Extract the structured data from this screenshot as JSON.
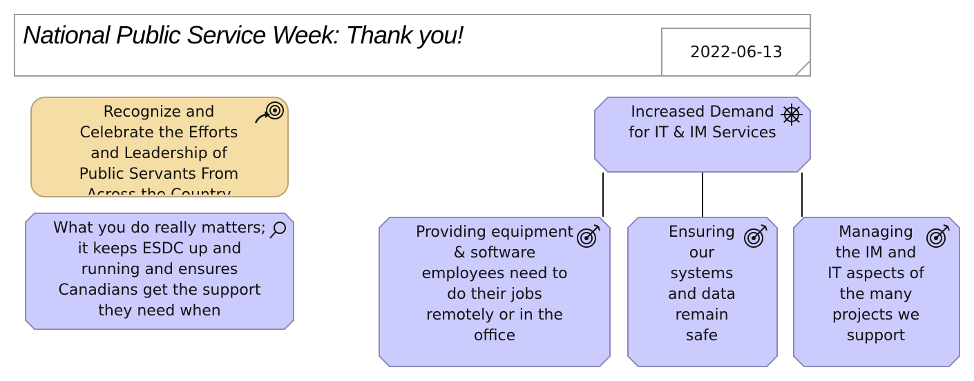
{
  "header": {
    "title": "National Public Service Week: Thank you!",
    "date": "2022-06-13"
  },
  "nodes": {
    "goal": {
      "label": "Recognize and Celebrate the Efforts and Leadership of Public Servants From Across the Country",
      "icon": "outcome-icon",
      "fill": "#f5dda6",
      "stroke": "#b7a478"
    },
    "assessment": {
      "label": "What you do really matters; it keeps ESDC up and running and ensures Canadians get the support they need when",
      "icon": "magnifier-icon",
      "fill": "#cccbfe",
      "stroke": "#8b8ab9"
    },
    "driver": {
      "label": "Increased Demand for IT & IM Services",
      "icon": "ship-wheel-icon",
      "fill": "#cccbfe",
      "stroke": "#8b8ab9"
    },
    "goal_equipment": {
      "label": "Providing equipment & software employees need to do their jobs remotely or in the office",
      "icon": "target-icon"
    },
    "goal_security": {
      "label": "Ensuring our systems and data remain safe",
      "icon": "target-icon"
    },
    "goal_projects": {
      "label": "Managing the IM and IT aspects of the many projects we support",
      "icon": "target-icon"
    }
  }
}
